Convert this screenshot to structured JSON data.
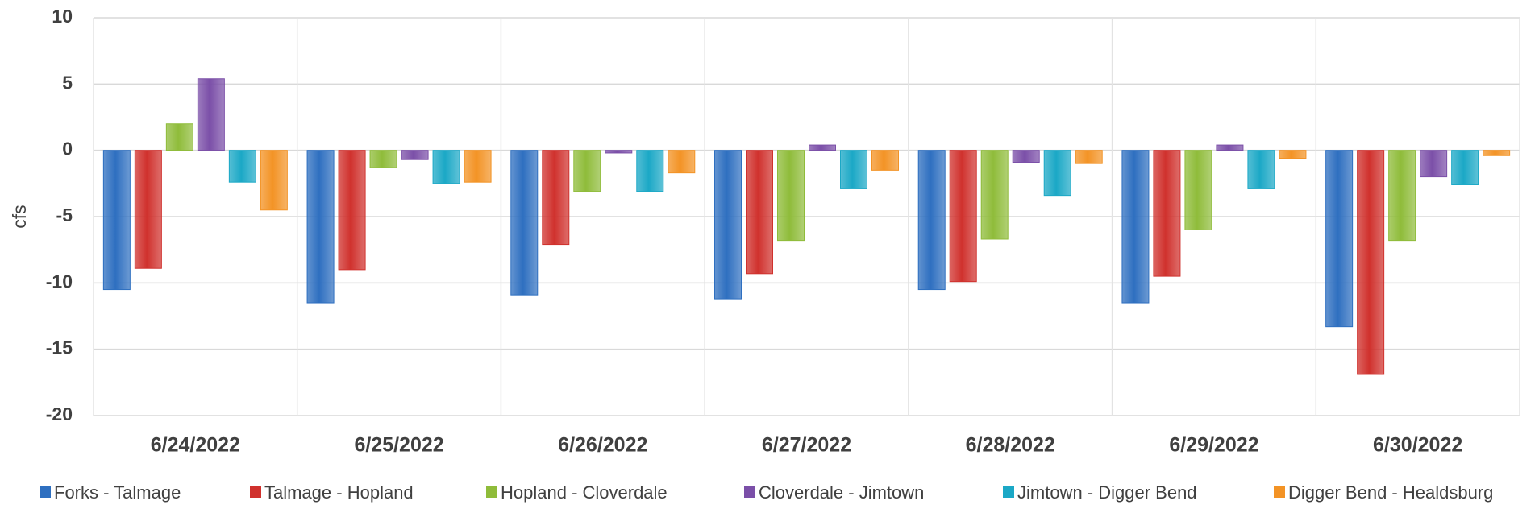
{
  "chart_data": {
    "type": "bar",
    "y_label": "cfs",
    "categories": [
      "6/24/2022",
      "6/25/2022",
      "6/26/2022",
      "6/27/2022",
      "6/28/2022",
      "6/29/2022",
      "6/30/2022"
    ],
    "series": [
      {
        "name": "Forks - Talmage",
        "color": "#2e6fc0",
        "values": [
          -10.5,
          -11.5,
          -10.9,
          -11.2,
          -10.5,
          -11.5,
          -13.3
        ]
      },
      {
        "name": "Talmage - Hopland",
        "color": "#d0312d",
        "values": [
          -8.9,
          -9.0,
          -7.1,
          -9.3,
          -9.9,
          -9.5,
          -16.9
        ]
      },
      {
        "name": "Hopland - Cloverdale",
        "color": "#8fbc3a",
        "values": [
          2.0,
          -1.3,
          -3.1,
          -6.8,
          -6.7,
          -6.0,
          -6.8
        ]
      },
      {
        "name": "Cloverdale - Jimtown",
        "color": "#7b4fa8",
        "values": [
          5.4,
          -0.7,
          -0.2,
          0.4,
          -0.9,
          0.4,
          -2.0
        ]
      },
      {
        "name": "Jimtown - Digger Bend",
        "color": "#1ba8c6",
        "values": [
          -2.4,
          -2.5,
          -3.1,
          -2.9,
          -3.4,
          -2.9,
          -2.6
        ]
      },
      {
        "name": "Digger Bend - Healdsburg",
        "color": "#f39325",
        "values": [
          -4.5,
          -2.4,
          -1.7,
          -1.5,
          -1.0,
          -0.6,
          -0.4
        ]
      }
    ],
    "ylim": [
      -20,
      10
    ],
    "yticks": [
      -20,
      -15,
      -10,
      -5,
      0,
      5,
      10
    ],
    "grid": true
  }
}
